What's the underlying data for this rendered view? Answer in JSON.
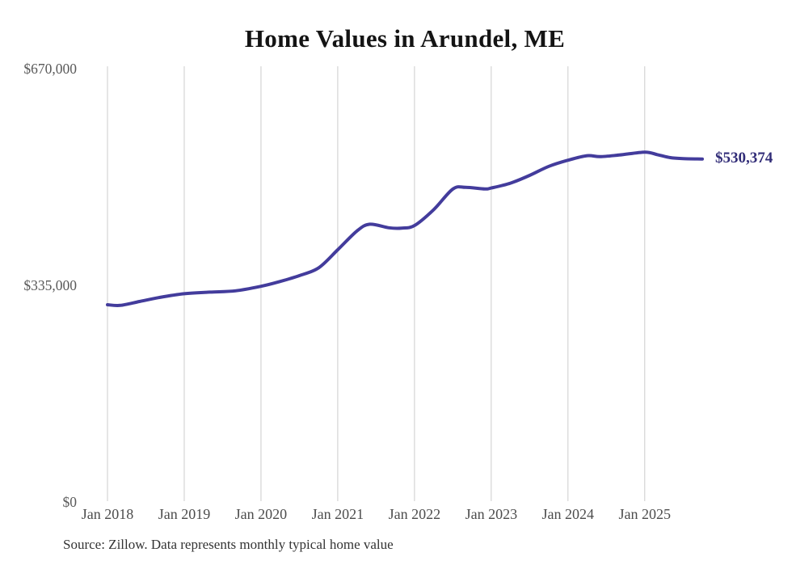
{
  "chart": {
    "title": "Home Values in Arundel, ME",
    "latest_value_label": "$530,374",
    "source_note": "Source: Zillow. Data represents monthly typical home value",
    "colors": {
      "line": "#433c9c",
      "latest_label_text": "#322d78",
      "gridline": "#cccccc",
      "y_axis_text": "#595959",
      "x_axis_text": "#4c4c4c",
      "title_text": "#141414",
      "source_text": "#333333",
      "background": "#ffffff"
    }
  },
  "chart_data": {
    "type": "line",
    "title": "Home Values in Arundel, ME",
    "xlabel": "",
    "ylabel": "",
    "ylim": [
      0,
      670000
    ],
    "grid": "vertical",
    "legend": "none",
    "months_span": 93,
    "latest_value": 530374,
    "x_ticks": [
      {
        "label": "Jan 2018",
        "month_index": 0
      },
      {
        "label": "Jan 2019",
        "month_index": 12
      },
      {
        "label": "Jan 2020",
        "month_index": 24
      },
      {
        "label": "Jan 2021",
        "month_index": 36
      },
      {
        "label": "Jan 2022",
        "month_index": 48
      },
      {
        "label": "Jan 2023",
        "month_index": 60
      },
      {
        "label": "Jan 2024",
        "month_index": 72
      },
      {
        "label": "Jan 2025",
        "month_index": 84
      }
    ],
    "y_ticks": [
      {
        "label": "$670,000",
        "value": 670000
      },
      {
        "label": "$335,000",
        "value": 335000
      },
      {
        "label": "$0",
        "value": 0
      }
    ],
    "series": [
      {
        "name": "Monthly typical home value",
        "points": [
          {
            "month": "Jan 2018",
            "month_index": 0,
            "value": 305000
          },
          {
            "month": "Mar 2018",
            "month_index": 2,
            "value": 304000
          },
          {
            "month": "Jun 2018",
            "month_index": 5,
            "value": 310000
          },
          {
            "month": "Sep 2018",
            "month_index": 8,
            "value": 316000
          },
          {
            "month": "Jan 2019",
            "month_index": 12,
            "value": 322000
          },
          {
            "month": "May 2019",
            "month_index": 16,
            "value": 324500
          },
          {
            "month": "Sep 2019",
            "month_index": 20,
            "value": 326500
          },
          {
            "month": "Jan 2020",
            "month_index": 24,
            "value": 333500
          },
          {
            "month": "Apr 2020",
            "month_index": 27,
            "value": 341000
          },
          {
            "month": "Jul 2020",
            "month_index": 30,
            "value": 350000
          },
          {
            "month": "Oct 2020",
            "month_index": 33,
            "value": 362000
          },
          {
            "month": "Jan 2021",
            "month_index": 36,
            "value": 390000
          },
          {
            "month": "Apr 2021",
            "month_index": 39,
            "value": 419000
          },
          {
            "month": "Jun 2021",
            "month_index": 41,
            "value": 429500
          },
          {
            "month": "Sep 2021",
            "month_index": 44,
            "value": 424000
          },
          {
            "month": "Nov 2021",
            "month_index": 46,
            "value": 423500
          },
          {
            "month": "Jan 2022",
            "month_index": 48,
            "value": 427500
          },
          {
            "month": "Apr 2022",
            "month_index": 51,
            "value": 452000
          },
          {
            "month": "Jul 2022",
            "month_index": 54,
            "value": 484000
          },
          {
            "month": "Sep 2022",
            "month_index": 56,
            "value": 486500
          },
          {
            "month": "Dec 2022",
            "month_index": 59,
            "value": 484000
          },
          {
            "month": "Jan 2023",
            "month_index": 60,
            "value": 485500
          },
          {
            "month": "Apr 2023",
            "month_index": 63,
            "value": 493000
          },
          {
            "month": "Jul 2023",
            "month_index": 66,
            "value": 505000
          },
          {
            "month": "Oct 2023",
            "month_index": 69,
            "value": 519000
          },
          {
            "month": "Jan 2024",
            "month_index": 72,
            "value": 528500
          },
          {
            "month": "Apr 2024",
            "month_index": 75,
            "value": 535500
          },
          {
            "month": "Jun 2024",
            "month_index": 77,
            "value": 534000
          },
          {
            "month": "Sep 2024",
            "month_index": 80,
            "value": 536500
          },
          {
            "month": "Jan 2025",
            "month_index": 84,
            "value": 541000
          },
          {
            "month": "Mar 2025",
            "month_index": 86,
            "value": 537000
          },
          {
            "month": "May 2025",
            "month_index": 88,
            "value": 532500
          },
          {
            "month": "Jul 2025",
            "month_index": 90,
            "value": 531000
          },
          {
            "month": "Oct 2025",
            "month_index": 93,
            "value": 530374
          }
        ]
      }
    ]
  }
}
